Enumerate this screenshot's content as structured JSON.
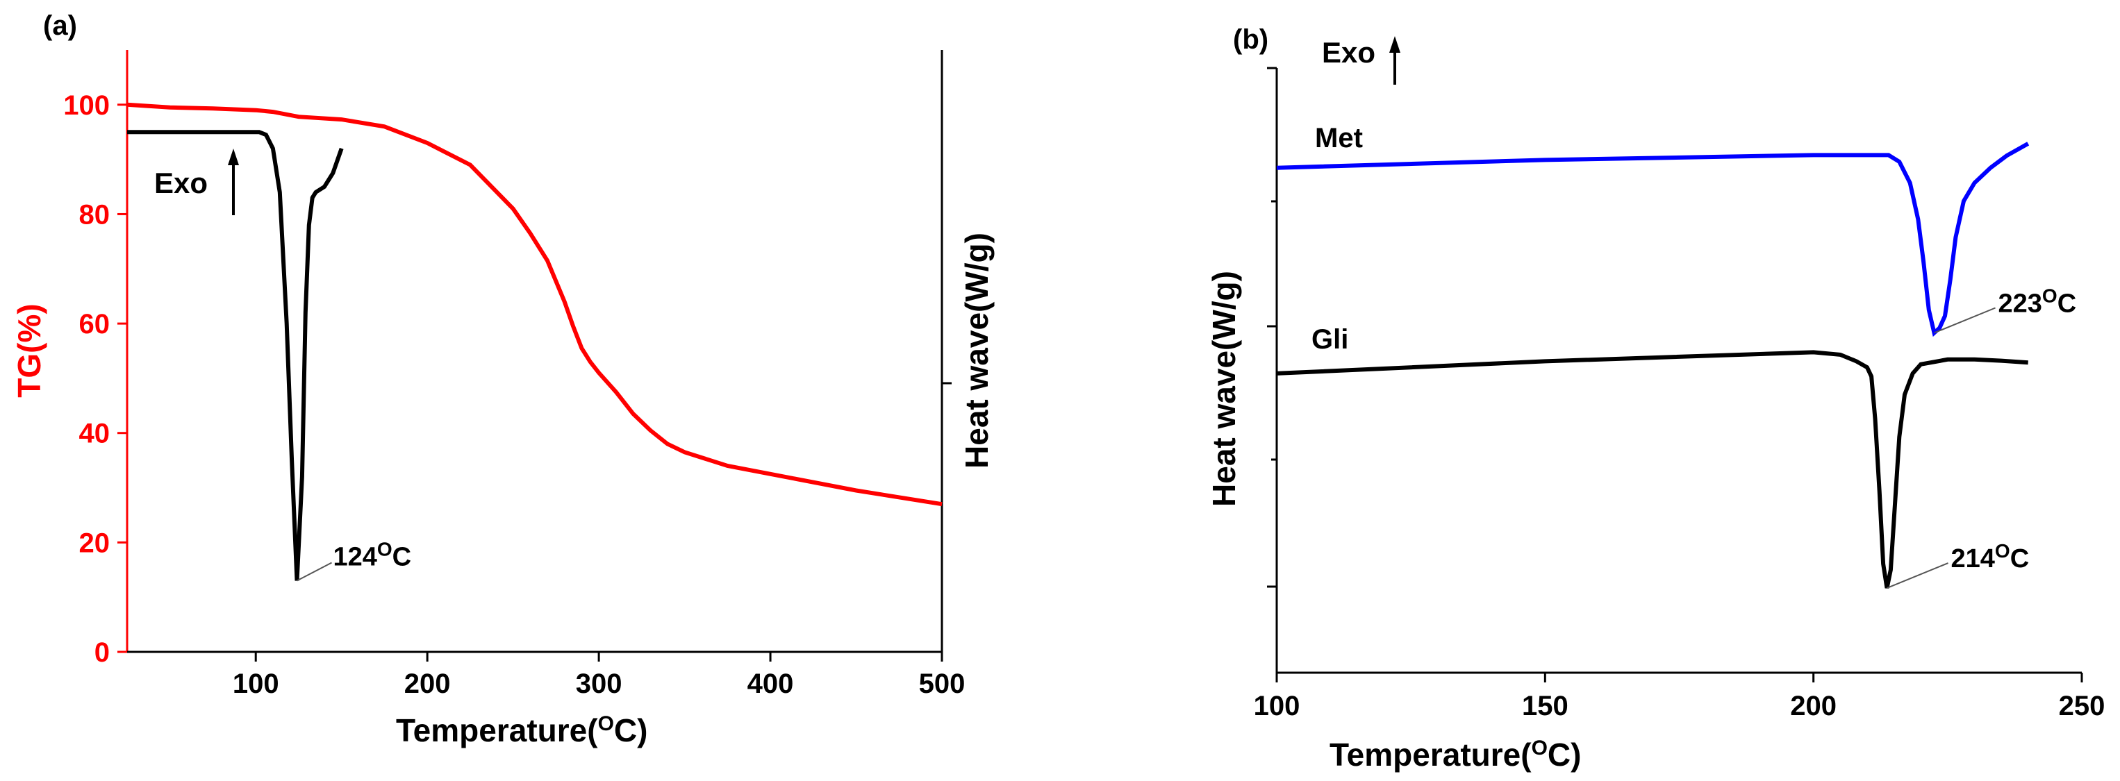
{
  "colors": {
    "tg": "#ff0000",
    "dsc_a": "#000000",
    "met": "#0000ff",
    "gli": "#000000",
    "axis": "#000000"
  },
  "chart_data": [
    {
      "panel_label": "(a)",
      "type": "line",
      "xlabel": "Temperature(",
      "xunit_sup": "O",
      "xunit_tail": "C)",
      "ylabel_left": "TG(%)",
      "ylabel_right": "Heat wave(W/g)",
      "xlim": [
        25,
        500
      ],
      "ylim": [
        0,
        110
      ],
      "x_ticks": [
        100,
        200,
        300,
        400,
        500
      ],
      "y_ticks": [
        0,
        20,
        40,
        60,
        80,
        100
      ],
      "marker_label": "Exo",
      "marker_icon": "up-arrow",
      "series": [
        {
          "name": "TG",
          "axis": "left",
          "x": [
            25,
            50,
            75,
            100,
            110,
            125,
            150,
            175,
            200,
            225,
            250,
            260,
            270,
            280,
            285,
            290,
            295,
            300,
            310,
            320,
            330,
            340,
            350,
            375,
            400,
            450,
            500
          ],
          "y": [
            100,
            99.5,
            99.3,
            99.0,
            98.7,
            97.8,
            97.3,
            96.0,
            93.0,
            89.0,
            81.0,
            76.5,
            71.5,
            64.0,
            59.5,
            55.5,
            53.0,
            51.0,
            47.5,
            43.5,
            40.5,
            38.0,
            36.5,
            34.0,
            32.5,
            29.5,
            27.0
          ]
        },
        {
          "name": "DSC",
          "axis": "right",
          "x": [
            25,
            102,
            106,
            110,
            114,
            118,
            121,
            124,
            127,
            129,
            131,
            133,
            135,
            140,
            145,
            150
          ],
          "y": [
            95,
            95,
            94.5,
            92,
            84,
            60,
            35,
            13,
            32,
            62,
            78,
            83,
            84,
            85,
            87.5,
            92
          ]
        }
      ],
      "annotations": [
        {
          "text": "124",
          "sup": "O",
          "tail": "C",
          "x": 124,
          "y": 13
        }
      ]
    },
    {
      "panel_label": "(b)",
      "type": "line",
      "xlabel": "Temperature(",
      "xunit_sup": "O",
      "xunit_tail": "C)",
      "ylabel_left": "Heat wave(W/g)",
      "xlim": [
        100,
        250
      ],
      "ylim": [
        0,
        100
      ],
      "x_ticks": [
        100,
        150,
        200,
        250
      ],
      "marker_label": "Exo",
      "marker_icon": "up-arrow",
      "series": [
        {
          "name": "Met",
          "x": [
            100,
            150,
            200,
            214,
            216,
            218,
            219.5,
            220.5,
            221.5,
            222.5,
            223.5,
            224.5,
            225.5,
            226.5,
            228,
            230,
            233,
            236,
            240
          ],
          "y": [
            83.5,
            84.8,
            85.6,
            85.6,
            84.5,
            81,
            75,
            68,
            60,
            56.2,
            57,
            59,
            65,
            72,
            78,
            81,
            83.5,
            85.5,
            87.5
          ]
        },
        {
          "name": "Gli",
          "x": [
            100,
            150,
            200,
            205,
            208,
            210,
            210.8,
            211.5,
            212.3,
            213,
            213.7,
            214.4,
            215.2,
            216,
            217,
            218.5,
            220,
            225,
            230,
            235,
            240
          ],
          "y": [
            49.5,
            51.5,
            53,
            52.6,
            51.5,
            50.5,
            49,
            42,
            30,
            18,
            14,
            17,
            28,
            39,
            46,
            49.5,
            51,
            51.8,
            51.8,
            51.6,
            51.3
          ]
        }
      ],
      "series_labels": [
        {
          "text": "Met"
        },
        {
          "text": "Gli"
        }
      ],
      "annotations": [
        {
          "text": "223",
          "sup": "O",
          "tail": "C",
          "x": 222.5,
          "y": 56.2
        },
        {
          "text": "214",
          "sup": "O",
          "tail": "C",
          "x": 213.7,
          "y": 14
        }
      ]
    }
  ]
}
